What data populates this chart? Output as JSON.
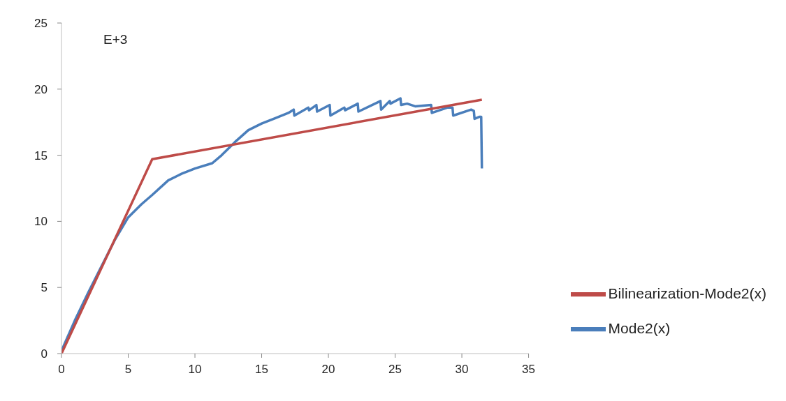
{
  "chart_data": {
    "type": "line",
    "annotations": [
      "E+3"
    ],
    "xlim": [
      0,
      35
    ],
    "xticks": [
      0,
      5,
      10,
      15,
      20,
      25,
      30,
      35
    ],
    "ylim": [
      0,
      25
    ],
    "yticks": [
      0,
      5,
      10,
      15,
      20,
      25
    ],
    "grid": false,
    "legend": "bottom right",
    "marker": "none",
    "line_style": "solid",
    "series": [
      {
        "name": "Mode2(x)",
        "color": "#4a7ebb",
        "x": [
          0,
          1,
          2,
          3,
          4,
          5,
          6,
          6.8,
          8,
          9,
          10,
          11.3,
          12,
          13,
          14,
          15,
          16,
          17,
          17.4,
          17.45,
          18.5,
          18.55,
          19.1,
          19.15,
          20.1,
          20.15,
          21.2,
          21.25,
          22.2,
          22.25,
          23.9,
          23.95,
          24.6,
          24.65,
          25.4,
          25.45,
          25.9,
          26.5,
          27.7,
          27.75,
          28.9,
          29.3,
          29.35,
          30.7,
          30.9,
          30.95,
          31.3,
          31.45,
          31.5
        ],
        "values": [
          0.2,
          2.5,
          4.6,
          6.6,
          8.6,
          10.3,
          11.3,
          12.0,
          13.1,
          13.6,
          14.0,
          14.4,
          15.0,
          16.0,
          16.9,
          17.4,
          17.8,
          18.2,
          18.45,
          18.0,
          18.6,
          18.4,
          18.8,
          18.3,
          18.8,
          18.0,
          18.6,
          18.4,
          18.9,
          18.3,
          19.1,
          18.45,
          19.1,
          18.9,
          19.3,
          18.8,
          18.9,
          18.7,
          18.8,
          18.2,
          18.6,
          18.6,
          18.0,
          18.45,
          18.35,
          17.75,
          17.9,
          17.9,
          14.0
        ]
      },
      {
        "name": "Bilinearization-Mode2(x)",
        "color": "#be4b48",
        "x": [
          0,
          6.8,
          31.5
        ],
        "values": [
          0,
          14.7,
          19.2
        ]
      }
    ]
  }
}
